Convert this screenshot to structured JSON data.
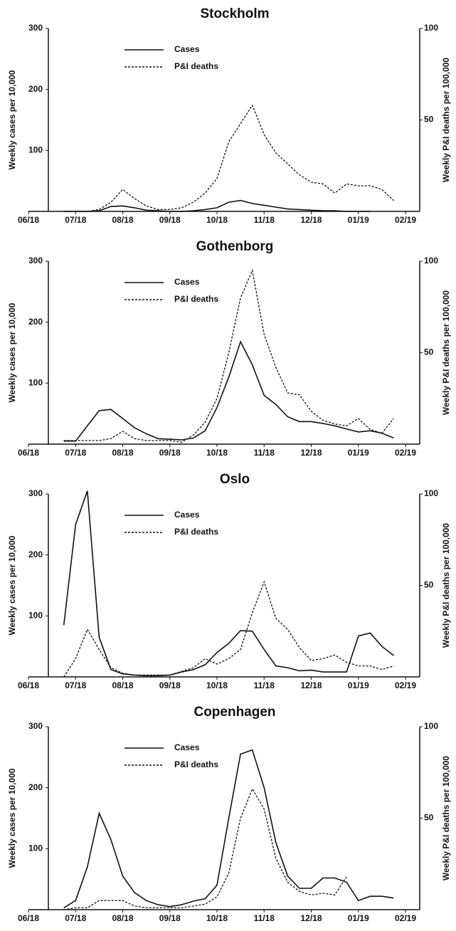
{
  "chart_data": [
    {
      "type": "line",
      "title": "Stockholm",
      "ylabel": "Weekly cases per 10,000",
      "y2label": "Weekly P&I deaths per 100,000",
      "x": [
        0.75,
        1,
        1.25,
        1.5,
        1.75,
        2,
        2.25,
        2.5,
        2.75,
        3,
        3.25,
        3.5,
        3.75,
        4,
        4.25,
        4.5,
        4.75,
        5,
        5.25,
        5.5,
        5.75,
        6,
        6.25,
        6.5,
        6.75,
        7,
        7.25,
        7.5,
        7.75
      ],
      "xlim": [
        0,
        8
      ],
      "xticks": [
        {
          "value": 0,
          "label": "06/18"
        },
        {
          "value": 1,
          "label": "07/18"
        },
        {
          "value": 2,
          "label": "08/18"
        },
        {
          "value": 3,
          "label": "09/18"
        },
        {
          "value": 4,
          "label": "10/18"
        },
        {
          "value": 5,
          "label": "11/18"
        },
        {
          "value": 6,
          "label": "12/18"
        },
        {
          "value": 7,
          "label": "01/19"
        },
        {
          "value": 8,
          "label": "02/19"
        }
      ],
      "ylim": [
        0,
        300
      ],
      "yticks": [
        100,
        200,
        300
      ],
      "y2lim": [
        0,
        100
      ],
      "y2ticks": [
        50,
        100
      ],
      "legend": "upper left",
      "series": [
        {
          "name": "Cases",
          "color": "#111111",
          "dash": "solid",
          "values": [
            0,
            0,
            0,
            1,
            8,
            9,
            6,
            2,
            1,
            0,
            0,
            1,
            3,
            6,
            15,
            18,
            13,
            10,
            7,
            4,
            3,
            2,
            1,
            1,
            0,
            0,
            0,
            null,
            null
          ]
        },
        {
          "name": "P&I deaths",
          "color": "#111111",
          "dash": "dashed",
          "axis": "y2",
          "values": [
            0,
            0,
            0,
            1,
            5,
            12,
            7,
            3,
            1,
            1,
            2,
            5,
            10,
            18,
            38,
            48,
            58,
            42,
            32,
            26,
            20,
            16,
            15,
            10,
            15,
            14,
            14,
            12,
            6
          ]
        }
      ]
    },
    {
      "type": "line",
      "title": "Gothenborg",
      "ylabel": "Weekly cases per 10,000",
      "y2label": "Weekly P&I deaths per 100,000",
      "x": [
        0.75,
        1,
        1.25,
        1.5,
        1.75,
        2,
        2.25,
        2.5,
        2.75,
        3,
        3.25,
        3.5,
        3.75,
        4,
        4.25,
        4.5,
        4.75,
        5,
        5.25,
        5.5,
        5.75,
        6,
        6.25,
        6.5,
        6.75,
        7,
        7.25,
        7.5,
        7.75
      ],
      "xlim": [
        0,
        8
      ],
      "xticks": [
        {
          "value": 0,
          "label": "06/18"
        },
        {
          "value": 1,
          "label": "07/18"
        },
        {
          "value": 2,
          "label": "08/18"
        },
        {
          "value": 3,
          "label": "09/18"
        },
        {
          "value": 4,
          "label": "10/18"
        },
        {
          "value": 5,
          "label": "11/18"
        },
        {
          "value": 6,
          "label": "12/18"
        },
        {
          "value": 7,
          "label": "01/19"
        },
        {
          "value": 8,
          "label": "02/19"
        }
      ],
      "ylim": [
        0,
        300
      ],
      "yticks": [
        100,
        200,
        300
      ],
      "y2lim": [
        0,
        100
      ],
      "y2ticks": [
        50,
        100
      ],
      "legend": "upper left",
      "series": [
        {
          "name": "Cases",
          "color": "#111111",
          "dash": "solid",
          "values": [
            5,
            5,
            30,
            55,
            57,
            42,
            27,
            17,
            9,
            8,
            7,
            10,
            22,
            60,
            110,
            168,
            130,
            80,
            65,
            45,
            37,
            37,
            34,
            30,
            25,
            20,
            22,
            18,
            10
          ]
        },
        {
          "name": "P&I deaths",
          "color": "#111111",
          "dash": "dashed",
          "axis": "y2",
          "values": [
            2,
            2,
            2,
            2,
            3,
            7,
            3,
            2,
            2,
            2,
            1,
            5,
            12,
            25,
            50,
            80,
            95,
            60,
            42,
            28,
            27,
            18,
            13,
            11,
            10,
            14,
            8,
            6,
            14
          ]
        }
      ]
    },
    {
      "type": "line",
      "title": "Oslo",
      "ylabel": "Weekly cases per 10,000",
      "y2label": "Weekly P&I deaths per 100,000",
      "x": [
        0.75,
        1,
        1.25,
        1.5,
        1.75,
        2,
        2.25,
        2.5,
        2.75,
        3,
        3.25,
        3.5,
        3.75,
        4,
        4.25,
        4.5,
        4.75,
        5,
        5.25,
        5.5,
        5.75,
        6,
        6.25,
        6.5,
        6.75,
        7,
        7.25,
        7.5,
        7.75
      ],
      "xlim": [
        0,
        8
      ],
      "xticks": [
        {
          "value": 0,
          "label": "06/18"
        },
        {
          "value": 1,
          "label": "07/18"
        },
        {
          "value": 2,
          "label": "08/18"
        },
        {
          "value": 3,
          "label": "09/18"
        },
        {
          "value": 4,
          "label": "10/18"
        },
        {
          "value": 5,
          "label": "11/18"
        },
        {
          "value": 6,
          "label": "12/18"
        },
        {
          "value": 7,
          "label": "01/19"
        },
        {
          "value": 8,
          "label": "02/19"
        }
      ],
      "ylim": [
        0,
        300
      ],
      "yticks": [
        100,
        200,
        300
      ],
      "y2lim": [
        0,
        100
      ],
      "y2ticks": [
        50,
        100
      ],
      "legend": "upper left",
      "series": [
        {
          "name": "Cases",
          "color": "#111111",
          "dash": "solid",
          "values": [
            85,
            250,
            305,
            65,
            12,
            5,
            3,
            2,
            2,
            3,
            8,
            12,
            20,
            40,
            55,
            76,
            75,
            45,
            18,
            15,
            10,
            11,
            8,
            8,
            8,
            67,
            72,
            50,
            35
          ]
        },
        {
          "name": "P&I deaths",
          "color": "#111111",
          "dash": "dashed",
          "axis": "y2",
          "values": [
            0,
            10,
            26,
            15,
            5,
            2,
            1,
            1,
            1,
            1,
            3,
            5,
            10,
            7,
            10,
            15,
            35,
            52,
            32,
            26,
            16,
            9,
            10,
            12,
            8,
            6,
            6,
            4,
            6
          ]
        }
      ]
    },
    {
      "type": "line",
      "title": "Copenhagen",
      "ylabel": "Weekly cases per 10,000",
      "y2label": "Weekly P&I deaths per 100,000",
      "x": [
        0.75,
        1,
        1.25,
        1.5,
        1.75,
        2,
        2.25,
        2.5,
        2.75,
        3,
        3.25,
        3.5,
        3.75,
        4,
        4.25,
        4.5,
        4.75,
        5,
        5.25,
        5.5,
        5.75,
        6,
        6.25,
        6.5,
        6.75,
        7,
        7.25,
        7.5,
        7.75
      ],
      "xlim": [
        0,
        8
      ],
      "xticks": [
        {
          "value": 0,
          "label": "06/18"
        },
        {
          "value": 1,
          "label": "07/18"
        },
        {
          "value": 2,
          "label": "08/18"
        },
        {
          "value": 3,
          "label": "09/18"
        },
        {
          "value": 4,
          "label": "10/18"
        },
        {
          "value": 5,
          "label": "11/18"
        },
        {
          "value": 6,
          "label": "12/18"
        },
        {
          "value": 7,
          "label": "01/19"
        },
        {
          "value": 8,
          "label": "02/19"
        }
      ],
      "ylim": [
        0,
        300
      ],
      "yticks": [
        100,
        200,
        300
      ],
      "y2lim": [
        0,
        100
      ],
      "y2ticks": [
        50,
        100
      ],
      "legend": "upper left",
      "series": [
        {
          "name": "Cases",
          "color": "#111111",
          "dash": "solid",
          "values": [
            3,
            15,
            70,
            158,
            115,
            55,
            28,
            15,
            8,
            5,
            8,
            14,
            18,
            40,
            150,
            255,
            262,
            200,
            110,
            55,
            35,
            35,
            52,
            52,
            45,
            15,
            22,
            22,
            19
          ]
        },
        {
          "name": "P&I deaths",
          "color": "#111111",
          "dash": "dashed",
          "axis": "y2",
          "values": [
            0,
            1,
            1,
            5,
            5,
            5,
            2,
            1,
            1,
            1,
            1,
            2,
            3,
            7,
            20,
            50,
            66,
            55,
            28,
            15,
            10,
            8,
            9,
            8,
            18,
            null,
            null,
            null,
            null
          ]
        }
      ]
    }
  ]
}
